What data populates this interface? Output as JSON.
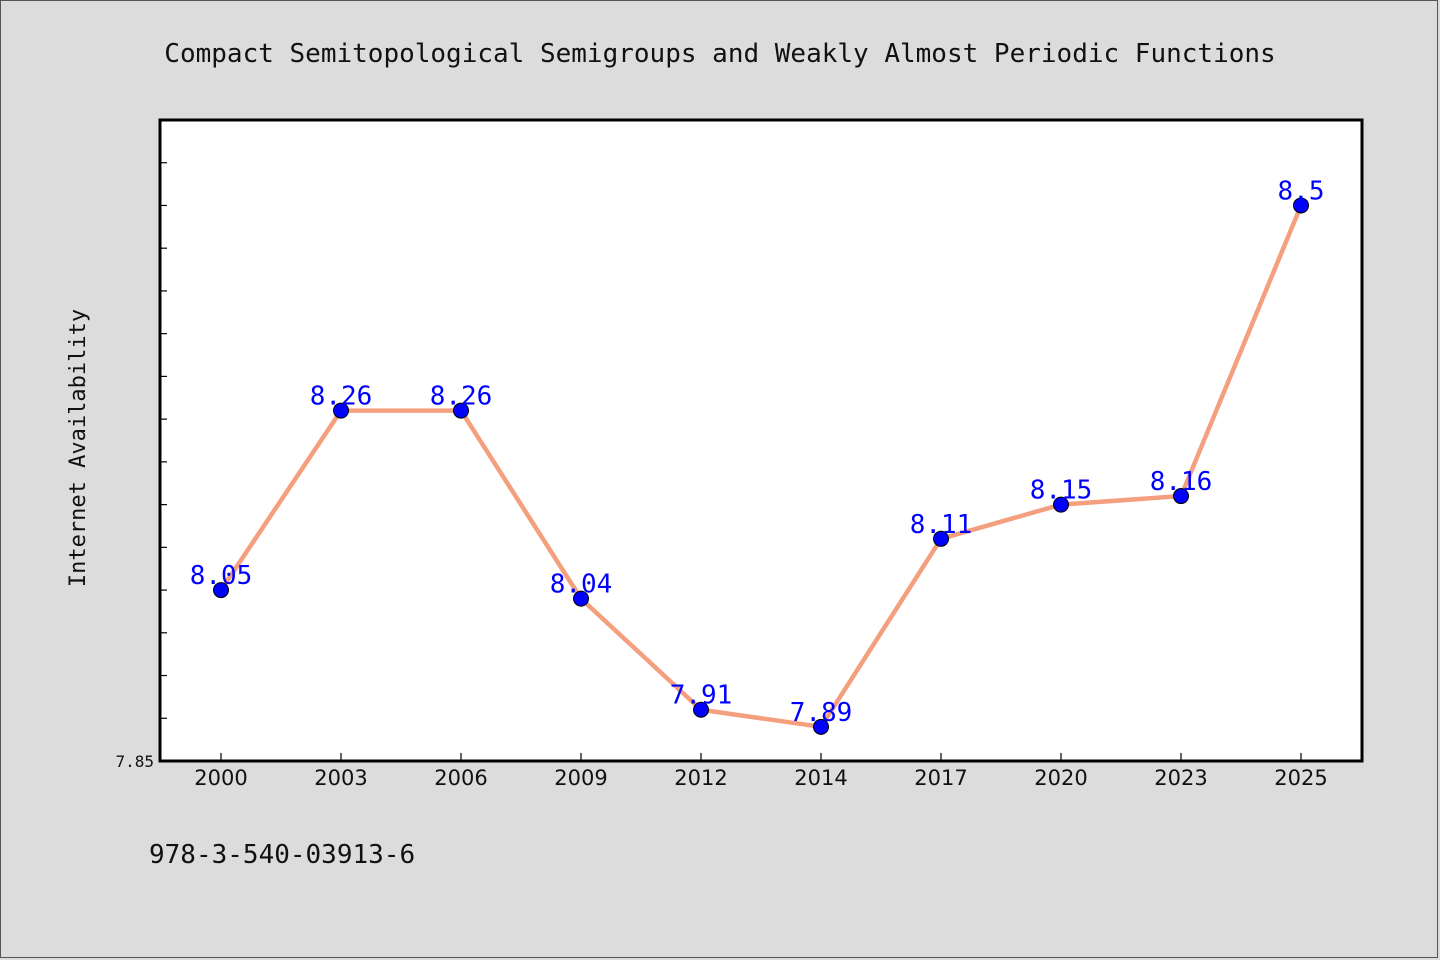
{
  "chart_data": {
    "type": "line",
    "title": "Compact Semitopological Semigroups and Weakly Almost Periodic Functions",
    "xlabel": "",
    "ylabel": "Internet Availability",
    "categories": [
      "2000",
      "2003",
      "2006",
      "2009",
      "2012",
      "2014",
      "2017",
      "2020",
      "2023",
      "2025"
    ],
    "series": [
      {
        "values": [
          8.05,
          8.26,
          8.26,
          8.04,
          7.91,
          7.89,
          8.11,
          8.15,
          8.16,
          8.5
        ],
        "data_labels": [
          "8.05",
          "8.26",
          "8.26",
          "8.04",
          "7.91",
          "7.89",
          "8.11",
          "8.15",
          "8.16",
          "8.5"
        ]
      }
    ],
    "ylim": [
      7.85,
      8.6
    ],
    "y_tick_labels": [
      "7.85"
    ],
    "grid": false,
    "line_color": "#f4a07e",
    "marker_color": "#0000ff",
    "label_color": "#0000ff"
  },
  "footer_text": "978-3-540-03913-6"
}
